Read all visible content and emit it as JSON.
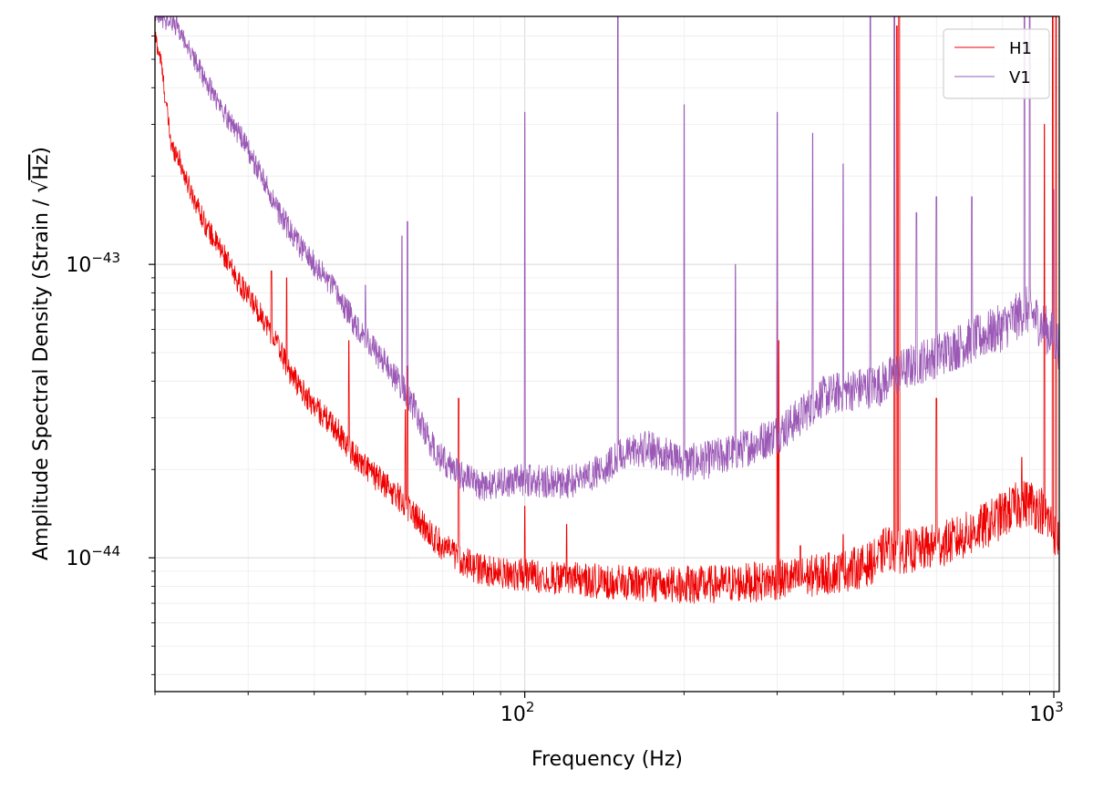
{
  "chart_data": {
    "type": "line",
    "xlabel": "Frequency (Hz)",
    "ylabel_prefix": "Amplitude Spectral Density (Strain / ",
    "ylabel_radical": "√",
    "ylabel_radicand": "Hz",
    "ylabel_suffix": ")",
    "x_scale": "log",
    "y_scale": "log",
    "xlim": [
      20,
      1024
    ],
    "ylim": [
      3.5e-45,
      7e-43
    ],
    "grid": true,
    "legend_position": "top-right",
    "x_ticks": [
      {
        "value": 100,
        "base": "10",
        "exp": "2"
      },
      {
        "value": 1000,
        "base": "10",
        "exp": "3"
      }
    ],
    "y_ticks": [
      {
        "value": 1e-44,
        "base": "10",
        "exp": "−44"
      },
      {
        "value": 1e-43,
        "base": "10",
        "exp": "−43"
      }
    ],
    "series": [
      {
        "name": "H1",
        "color": "#ee0000",
        "points": [
          [
            20,
            6e-43
          ],
          [
            20.5,
            5e-43
          ],
          [
            21,
            3.5e-43
          ],
          [
            21.5,
            2.5e-43
          ],
          [
            22,
            2.4e-43
          ],
          [
            23,
            1.9e-43
          ],
          [
            24,
            1.6e-43
          ],
          [
            25,
            1.35e-43
          ],
          [
            26,
            1.2e-43
          ],
          [
            27,
            1.08e-43
          ],
          [
            28,
            9.5e-44
          ],
          [
            29,
            8.5e-44
          ],
          [
            30,
            7.8e-44
          ],
          [
            32,
            6.6e-44
          ],
          [
            34,
            5.4e-44
          ],
          [
            36,
            4.3e-44
          ],
          [
            38,
            3.7e-44
          ],
          [
            40,
            3.3e-44
          ],
          [
            42,
            3e-44
          ],
          [
            44,
            2.75e-44
          ],
          [
            46,
            2.45e-44
          ],
          [
            48,
            2.2e-44
          ],
          [
            50,
            2.05e-44
          ],
          [
            52,
            1.9e-44
          ],
          [
            55,
            1.75e-44
          ],
          [
            58,
            1.6e-44
          ],
          [
            60,
            1.5e-44
          ],
          [
            62,
            1.4e-44
          ],
          [
            64,
            1.3e-44
          ],
          [
            66,
            1.22e-44
          ],
          [
            68,
            1.15e-44
          ],
          [
            70,
            1.1e-44
          ],
          [
            72,
            1.05e-44
          ],
          [
            75,
            1e-44
          ],
          [
            78,
            9.6e-45
          ],
          [
            80,
            9.3e-45
          ],
          [
            85,
            9e-45
          ],
          [
            90,
            8.9e-45
          ],
          [
            95,
            8.8e-45
          ],
          [
            100,
            8.75e-45
          ],
          [
            110,
            8.6e-45
          ],
          [
            120,
            8.5e-45
          ],
          [
            130,
            8.4e-45
          ],
          [
            140,
            8.3e-45
          ],
          [
            150,
            8.25e-45
          ],
          [
            160,
            8.2e-45
          ],
          [
            170,
            8.15e-45
          ],
          [
            180,
            8.1e-45
          ],
          [
            200,
            8.1e-45
          ],
          [
            220,
            8.1e-45
          ],
          [
            250,
            8.2e-45
          ],
          [
            280,
            8.3e-45
          ],
          [
            300,
            8.4e-45
          ],
          [
            330,
            8.55e-45
          ],
          [
            360,
            8.75e-45
          ],
          [
            400,
            9e-45
          ],
          [
            440,
            9.4e-45
          ],
          [
            470,
            1e-44
          ],
          [
            480,
            1.1e-44
          ],
          [
            500,
            1.05e-44
          ],
          [
            550,
            1.06e-44
          ],
          [
            600,
            1.1e-44
          ],
          [
            650,
            1.15e-44
          ],
          [
            700,
            1.22e-44
          ],
          [
            750,
            1.3e-44
          ],
          [
            800,
            1.4e-44
          ],
          [
            850,
            1.5e-44
          ],
          [
            900,
            1.55e-44
          ],
          [
            950,
            1.45e-44
          ],
          [
            1000,
            1.25e-44
          ],
          [
            1024,
            1.15e-44
          ]
        ],
        "spikes": [
          [
            33.2,
            9.5e-44
          ],
          [
            35.5,
            9e-44
          ],
          [
            46.5,
            5.5e-44
          ],
          [
            59.5,
            3.2e-44
          ],
          [
            60,
            4.5e-44
          ],
          [
            75,
            3.5e-44
          ],
          [
            100,
            1.5e-44
          ],
          [
            120,
            1.3e-44
          ],
          [
            300,
            7.5e-44
          ],
          [
            302,
            5.5e-44
          ],
          [
            331.9,
            1.1e-44
          ],
          [
            400,
            1.2e-44
          ],
          [
            500,
            9e-42
          ],
          [
            505,
            6.5e-43
          ],
          [
            510,
            9e-42
          ],
          [
            600,
            3.5e-44
          ],
          [
            870,
            2.2e-44
          ],
          [
            960,
            3e-43
          ],
          [
            995,
            9e-42
          ],
          [
            1010,
            9e-42
          ]
        ]
      },
      {
        "name": "V1",
        "color": "#9b59b6",
        "points": [
          [
            20,
            7e-43
          ],
          [
            21,
            6.8e-43
          ],
          [
            22,
            6.5e-43
          ],
          [
            23,
            5.6e-43
          ],
          [
            24,
            4.8e-43
          ],
          [
            25,
            4.2e-43
          ],
          [
            26,
            3.7e-43
          ],
          [
            27,
            3.3e-43
          ],
          [
            28,
            3e-43
          ],
          [
            29,
            2.75e-43
          ],
          [
            30,
            2.45e-43
          ],
          [
            32,
            1.95e-43
          ],
          [
            34,
            1.55e-43
          ],
          [
            36,
            1.3e-43
          ],
          [
            38,
            1.12e-43
          ],
          [
            40,
            1e-43
          ],
          [
            42,
            9e-44
          ],
          [
            44,
            8e-44
          ],
          [
            46,
            7e-44
          ],
          [
            48,
            6.2e-44
          ],
          [
            50,
            5.7e-44
          ],
          [
            52,
            5.1e-44
          ],
          [
            55,
            4.5e-44
          ],
          [
            58,
            3.9e-44
          ],
          [
            60,
            3.6e-44
          ],
          [
            62,
            3.2e-44
          ],
          [
            64,
            2.8e-44
          ],
          [
            66,
            2.5e-44
          ],
          [
            68,
            2.3e-44
          ],
          [
            70,
            2.15e-44
          ],
          [
            75,
            1.95e-44
          ],
          [
            80,
            1.8e-44
          ],
          [
            85,
            1.75e-44
          ],
          [
            90,
            1.78e-44
          ],
          [
            95,
            1.82e-44
          ],
          [
            100,
            1.85e-44
          ],
          [
            110,
            1.82e-44
          ],
          [
            120,
            1.8e-44
          ],
          [
            130,
            1.9e-44
          ],
          [
            140,
            2e-44
          ],
          [
            150,
            2.2e-44
          ],
          [
            160,
            2.3e-44
          ],
          [
            170,
            2.35e-44
          ],
          [
            180,
            2.3e-44
          ],
          [
            190,
            2.2e-44
          ],
          [
            200,
            2.1e-44
          ],
          [
            220,
            2.15e-44
          ],
          [
            250,
            2.3e-44
          ],
          [
            280,
            2.5e-44
          ],
          [
            300,
            2.65e-44
          ],
          [
            330,
            3e-44
          ],
          [
            360,
            3.5e-44
          ],
          [
            400,
            3.7e-44
          ],
          [
            440,
            3.8e-44
          ],
          [
            470,
            3.9e-44
          ],
          [
            500,
            4.2e-44
          ],
          [
            550,
            4.6e-44
          ],
          [
            600,
            4.9e-44
          ],
          [
            650,
            5.2e-44
          ],
          [
            700,
            5.5e-44
          ],
          [
            750,
            5.8e-44
          ],
          [
            800,
            6.1e-44
          ],
          [
            850,
            6.6e-44
          ],
          [
            880,
            7e-44
          ],
          [
            900,
            6.9e-44
          ],
          [
            950,
            6.2e-44
          ],
          [
            1000,
            5.6e-44
          ],
          [
            1024,
            5.3e-44
          ]
        ],
        "spikes": [
          [
            40,
            4.5e-44
          ],
          [
            45,
            6.2e-44
          ],
          [
            50,
            8.5e-44
          ],
          [
            58.6,
            1.25e-43
          ],
          [
            60,
            1.4e-43
          ],
          [
            100,
            3.3e-43
          ],
          [
            150,
            7e-42
          ],
          [
            200,
            3.5e-43
          ],
          [
            250,
            1e-43
          ],
          [
            300,
            3.3e-43
          ],
          [
            350,
            2.8e-43
          ],
          [
            400,
            2.2e-43
          ],
          [
            450,
            7e-42
          ],
          [
            500,
            9e-42
          ],
          [
            550,
            1.5e-43
          ],
          [
            600,
            1.7e-43
          ],
          [
            700,
            1.7e-43
          ],
          [
            880,
            9e-42
          ],
          [
            900,
            9e-42
          ],
          [
            1000,
            1.8e-43
          ]
        ]
      }
    ]
  }
}
